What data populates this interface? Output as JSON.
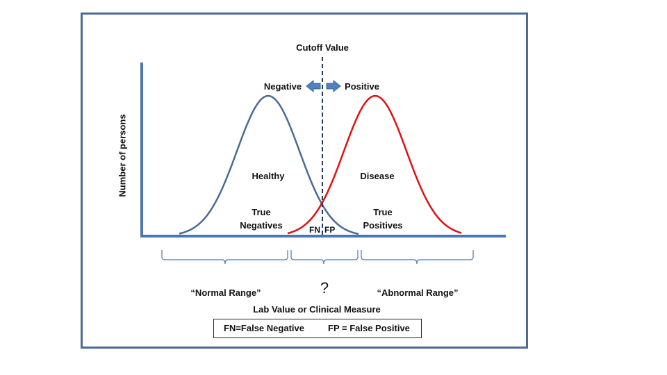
{
  "labels": {
    "cutoff": "Cutoff Value",
    "negative": "Negative",
    "positive": "Positive",
    "y_axis": "Number of persons",
    "healthy": "Healthy",
    "disease": "Disease",
    "true_negatives": [
      "True",
      "Negatives"
    ],
    "true_positives": [
      "True",
      "Positives"
    ],
    "fn": "FN",
    "fp": "FP",
    "normal_range": "“Normal Range”",
    "question": "?",
    "abnormal_range": "“Abnormal Range”",
    "x_axis": "Lab Value or Clinical Measure"
  },
  "legend": {
    "fn": "FN=False Negative",
    "fp": "FP = False Positive"
  },
  "colors": {
    "healthy_curve": "#4a6a93",
    "disease_curve": "#e01010",
    "axis": "#4d76b0",
    "arrow": "#4f81bd",
    "cutoff_line": "#1f3a66"
  }
}
